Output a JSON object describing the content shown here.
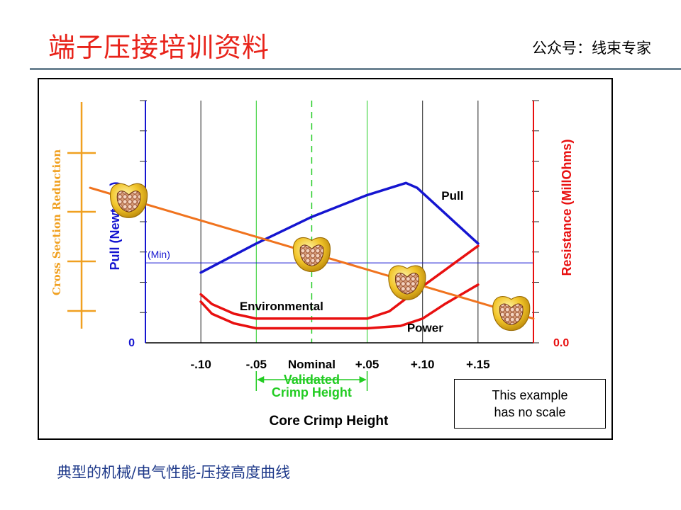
{
  "header": {
    "title": "端子压接培训资料",
    "account": "公众号：线束专家"
  },
  "caption": "典型的机械/电气性能-压接高度曲线",
  "note": {
    "line1": "This example",
    "line2": "has no scale"
  },
  "chart_data": {
    "type": "line",
    "xlabel": "Core Crimp Height",
    "x_ticks": [
      "-.10",
      "-.05",
      "Nominal",
      "+.05",
      "+.10",
      "+.15"
    ],
    "x_tick_values": [
      -0.1,
      -0.05,
      0.0,
      0.05,
      0.1,
      0.15
    ],
    "xlim": [
      -0.15,
      0.2
    ],
    "ylim": [
      0,
      100
    ],
    "grid": true,
    "legend": "none",
    "axes": {
      "cross_section": {
        "label": "Cross Section Reduction",
        "color": "#f0a020"
      },
      "pull": {
        "label": "Pull (Newtons)",
        "zero_label": "0",
        "color": "#1515d0"
      },
      "resistance": {
        "label": "Resistance (MillOhms)",
        "zero_label": "0.0",
        "color": "#e81010"
      }
    },
    "min_line": {
      "label": "(Min)",
      "value": 33
    },
    "validated_range": {
      "label_line1": "Validated",
      "label_line2": "Crimp Height",
      "from": -0.05,
      "to": 0.05,
      "color": "#22cc22"
    },
    "series": [
      {
        "name": "Pull",
        "color": "#1515d0",
        "x": [
          -0.1,
          -0.05,
          0.0,
          0.05,
          0.085,
          0.095,
          0.15
        ],
        "y": [
          29,
          41,
          52,
          61,
          66,
          64,
          41
        ]
      },
      {
        "name": "Environmental",
        "color": "#e81010",
        "x": [
          -0.1,
          -0.09,
          -0.07,
          -0.05,
          0.0,
          0.05,
          0.07,
          0.09,
          0.12,
          0.15
        ],
        "y": [
          20,
          16,
          12,
          10,
          10,
          10,
          13,
          20,
          30,
          40
        ]
      },
      {
        "name": "Power",
        "color": "#e81010",
        "x": [
          -0.1,
          -0.09,
          -0.07,
          -0.05,
          0.0,
          0.05,
          0.08,
          0.1,
          0.12,
          0.15
        ],
        "y": [
          17,
          12,
          8,
          6,
          6,
          6,
          7,
          10,
          16,
          24
        ]
      },
      {
        "name": "Cross Section Reduction",
        "color": "#f0731e",
        "x": [
          -0.2,
          0.2
        ],
        "y": [
          64,
          10
        ]
      }
    ],
    "series_labels": {
      "pull": "Pull",
      "environmental": "Environmental",
      "power": "Power"
    }
  },
  "colors": {
    "title": "#e8231a",
    "caption": "#1f3a8a",
    "rule": "#6d8493",
    "grid": "#222222"
  },
  "icons": [
    "crimp-cross-section-icon"
  ]
}
